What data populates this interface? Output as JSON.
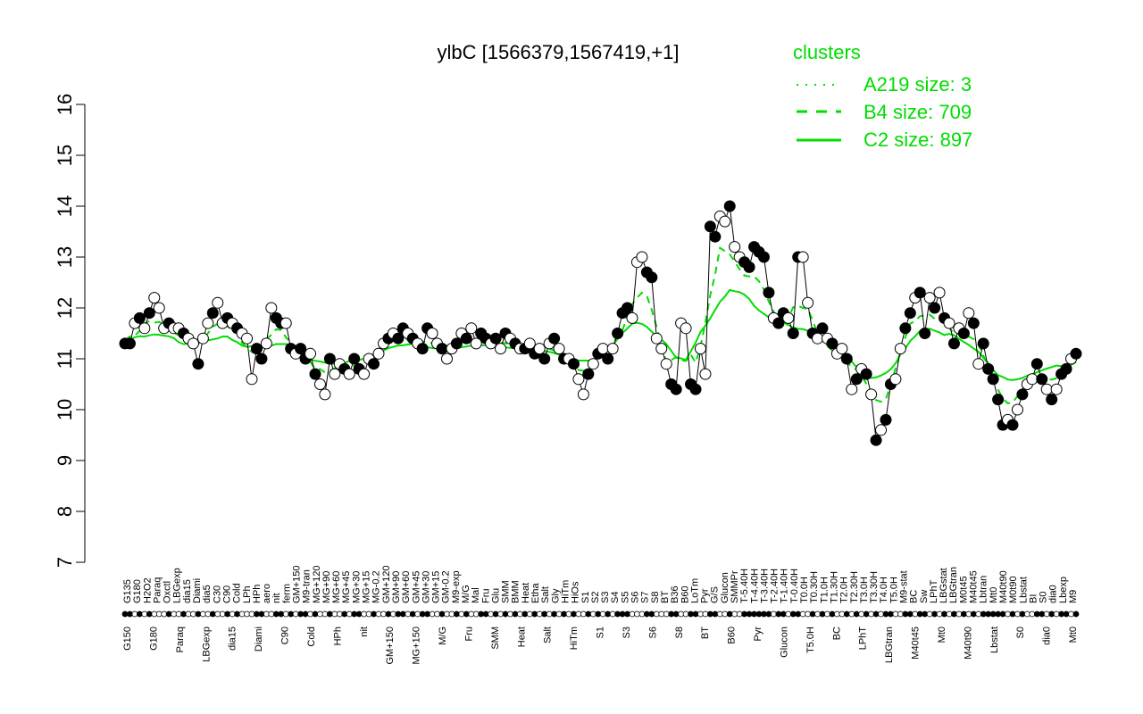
{
  "colors": {
    "series": "#00dd00",
    "marker_stroke": "#000000",
    "background": "#ffffff"
  },
  "chart_data": {
    "type": "line",
    "title": "ylbC [1566379,1567419,+1]",
    "xlabel": "",
    "ylabel": "",
    "ylim": [
      7,
      16
    ],
    "yticks": [
      7,
      8,
      9,
      10,
      11,
      12,
      13,
      14,
      15,
      16
    ],
    "legend": {
      "title": "clusters",
      "placement": "top-right",
      "entries": [
        {
          "label": "A219 size: 3",
          "style": "dotted"
        },
        {
          "label": "B4 size: 709",
          "style": "dashed"
        },
        {
          "label": "C2 size: 897",
          "style": "solid"
        }
      ]
    },
    "x_labels_top": [
      "G135",
      "G180",
      "H2O2",
      "Paraq",
      "Oxctl",
      "LBGexp",
      "dia15",
      "Diami",
      "dia5",
      "C30",
      "C90",
      "Cold",
      "LPh",
      "HPh",
      "aero",
      "nit",
      "ferm",
      "GM+150",
      "M9-tran",
      "MG+120",
      "MG+90",
      "MG+60",
      "MG+45",
      "MG+30",
      "MG+15",
      "MG-0.2",
      "GM+120",
      "GM+90",
      "GM+60",
      "GM+45",
      "GM+30",
      "GM+15",
      "GM-0.2",
      "M9-exp",
      "M/G",
      "Mal",
      "Fru",
      "Glu",
      "SMM",
      "BMM",
      "Heat",
      "Etha",
      "Salt",
      "Gly",
      "HiTm",
      "HiOs",
      "S1",
      "S2",
      "S3",
      "S4",
      "S5",
      "S6",
      "S7",
      "S8",
      "BT",
      "B36",
      "B60",
      "LoTm",
      "Pyr",
      "G/S",
      "Glucon",
      "SMMPr",
      "T-5.40H",
      "T-4.40H",
      "T-3.40H",
      "T-2.40H",
      "T-1.40H",
      "T-0.40H",
      "T0.0H",
      "T0.30H",
      "T1.0H",
      "T1.30H",
      "T2.0H",
      "T2.30H",
      "T3.0H",
      "T3.30H",
      "T4.0H",
      "T5.0H",
      "M9-stat",
      "BC",
      "Sw",
      "LPhT",
      "LBGstat",
      "LBGtran",
      "M0t45",
      "M40t45",
      "Lbtran",
      "Mt0",
      "M40t90",
      "M0t90",
      "Lbstat",
      "BI",
      "S0",
      "dia0",
      "Lbexp",
      "M9"
    ],
    "x_labels_bottom": [
      "G150",
      "G180",
      "Paraq",
      "LBGexp",
      "dia15",
      "Diami",
      "C90",
      "Cold",
      "HPh",
      "nit",
      "GM+150",
      "MG+150",
      "M/G",
      "Fru",
      "SMM",
      "Heat",
      "Salt",
      "HiTm",
      "S1",
      "S3",
      "S6",
      "S8",
      "BT",
      "B60",
      "Pyr",
      "Glucon",
      "T5.0H",
      "BC",
      "LPhT",
      "LBGtran",
      "M40t45",
      "Mt0",
      "M40t90",
      "Lbstat",
      "S0",
      "dia0",
      "Mt0"
    ],
    "series": [
      {
        "name": "ylbC",
        "values": [
          11.3,
          11.3,
          11.7,
          11.8,
          11.6,
          11.9,
          12.2,
          12.0,
          11.6,
          11.7,
          11.6,
          11.6,
          11.5,
          11.4,
          11.3,
          10.9,
          11.4,
          11.7,
          11.9,
          12.1,
          11.7,
          11.8,
          11.7,
          11.6,
          11.5,
          11.4,
          10.6,
          11.2,
          11.0,
          11.3,
          12.0,
          11.8,
          11.7,
          11.7,
          11.2,
          11.1,
          11.2,
          11.0,
          11.1,
          10.7,
          10.5,
          10.3,
          11.0,
          10.7,
          10.9,
          10.8,
          10.7,
          11.0,
          10.8,
          10.7,
          11.0,
          10.9,
          11.1,
          11.3,
          11.4,
          11.5,
          11.4,
          11.6,
          11.5,
          11.4,
          11.3,
          11.2,
          11.6,
          11.5,
          11.3,
          11.2,
          11.0,
          11.2,
          11.3,
          11.5,
          11.4,
          11.6,
          11.3,
          11.5,
          11.4,
          11.3,
          11.4,
          11.2,
          11.5,
          11.4,
          11.3,
          11.2,
          11.2,
          11.3,
          11.1,
          11.2,
          11.0,
          11.3,
          11.4,
          11.2,
          11.0,
          11.0,
          10.9,
          10.6,
          10.3,
          10.7,
          10.9,
          11.1,
          11.2,
          11.0,
          11.2,
          11.5,
          11.9,
          12.0,
          11.8,
          12.9,
          13.0,
          12.7,
          12.6,
          11.4,
          11.2,
          10.9,
          10.5,
          10.4,
          11.7,
          11.6,
          10.5,
          10.4,
          11.2,
          10.7,
          13.6,
          13.4,
          13.8,
          13.7,
          14.0,
          13.2,
          13.0,
          12.9,
          12.8,
          13.2,
          13.1,
          13.0,
          12.3,
          11.8,
          11.7,
          11.9,
          11.8,
          11.5,
          13.0,
          13.0,
          12.1,
          11.5,
          11.4,
          11.6,
          11.4,
          11.3,
          11.1,
          11.2,
          11.0,
          10.4,
          10.6,
          10.8,
          10.7,
          10.3,
          9.4,
          9.6,
          9.8,
          10.5,
          10.6,
          11.2,
          11.6,
          11.9,
          12.2,
          12.3,
          11.5,
          12.2,
          12.0,
          12.3,
          11.8,
          11.7,
          11.3,
          11.6,
          11.5,
          11.9,
          11.7,
          10.9,
          11.3,
          10.8,
          10.6,
          10.2,
          9.7,
          9.8,
          9.7,
          10.0,
          10.3,
          10.5,
          10.6,
          10.9,
          10.6,
          10.4,
          10.2,
          10.4,
          10.7,
          10.8,
          11.0,
          11.1
        ]
      }
    ],
    "marker_fill_pattern": [
      1,
      1,
      0,
      1,
      0,
      1,
      0,
      0,
      0,
      1,
      0,
      0,
      1,
      0,
      0,
      1,
      0,
      0,
      1,
      0,
      0,
      1,
      0,
      1,
      0,
      0,
      0,
      1,
      1,
      0,
      0,
      1,
      1,
      0,
      1,
      0,
      1,
      1,
      0,
      1,
      0,
      0,
      1,
      0,
      0,
      1,
      0,
      1,
      1,
      0,
      0,
      1,
      0,
      0,
      1,
      0,
      1,
      1,
      0,
      1,
      0,
      1,
      1,
      0,
      0,
      1,
      0,
      0,
      1,
      0,
      1,
      0,
      0,
      1,
      1,
      0,
      1,
      0,
      1,
      0,
      1,
      0,
      1,
      0,
      1,
      0,
      1,
      0,
      1,
      0,
      1,
      0,
      1,
      0,
      0,
      1,
      0,
      1,
      0,
      1,
      0,
      1,
      1,
      1,
      0,
      0,
      0,
      1,
      1,
      0,
      0,
      0,
      1,
      1,
      0,
      0,
      1,
      1,
      0,
      0,
      1,
      1,
      0,
      0,
      1,
      0,
      0,
      1,
      1,
      1,
      1,
      1,
      1,
      0,
      1,
      1,
      0,
      1,
      1,
      0,
      0,
      1,
      0,
      1,
      0,
      1,
      0,
      0,
      1,
      0,
      1,
      0,
      1,
      0,
      1,
      0,
      1,
      1,
      0,
      0,
      1,
      1,
      0,
      1,
      1,
      0,
      1,
      0,
      1,
      0,
      1,
      0,
      1,
      0,
      1,
      0,
      1,
      1,
      1,
      1,
      1,
      0,
      1,
      0,
      1,
      0,
      0,
      1,
      1,
      0,
      1,
      0
    ]
  }
}
